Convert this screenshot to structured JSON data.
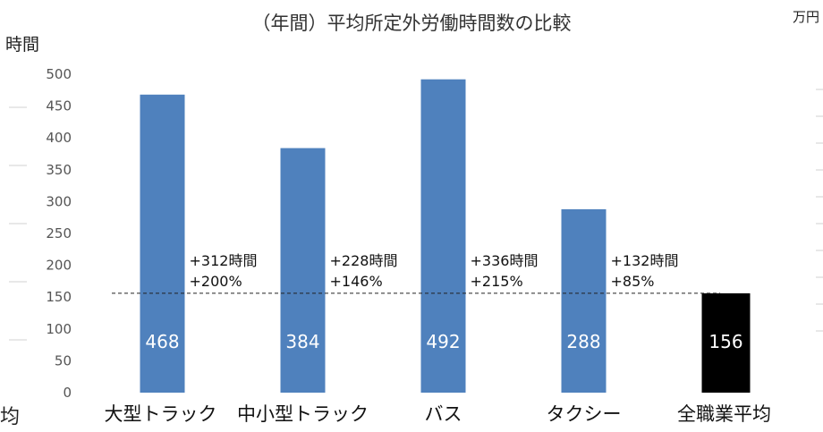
{
  "chart_data": {
    "type": "bar",
    "title": "（年間）平均所定外労働時間数の比較",
    "ylabel": "時間",
    "secondary_axis_unit": "万円",
    "left_edge_label": "均",
    "categories": [
      "大型トラック",
      "中小型トラック",
      "バス",
      "タクシー",
      "全職業平均"
    ],
    "values": [
      468,
      384,
      492,
      288,
      156
    ],
    "value_labels": [
      "468",
      "384",
      "492",
      "288",
      "156"
    ],
    "annotations": [
      {
        "category": "大型トラック",
        "line1": "+312時間",
        "line2": "+200%"
      },
      {
        "category": "中小型トラック",
        "line1": "+228時間",
        "line2": "+146%"
      },
      {
        "category": "バス",
        "line1": "+336時間",
        "line2": "+215%"
      },
      {
        "category": "タクシー",
        "line1": "+132時間",
        "line2": "+85%"
      }
    ],
    "reference_line": 156,
    "ylim": [
      0,
      500
    ],
    "yticks": [
      0,
      50,
      100,
      150,
      200,
      250,
      300,
      350,
      400,
      450,
      500
    ],
    "grid": false,
    "colors": {
      "bar": "#4f81bd",
      "highlight_bar": "#000000",
      "reference_line": "#222222"
    }
  }
}
